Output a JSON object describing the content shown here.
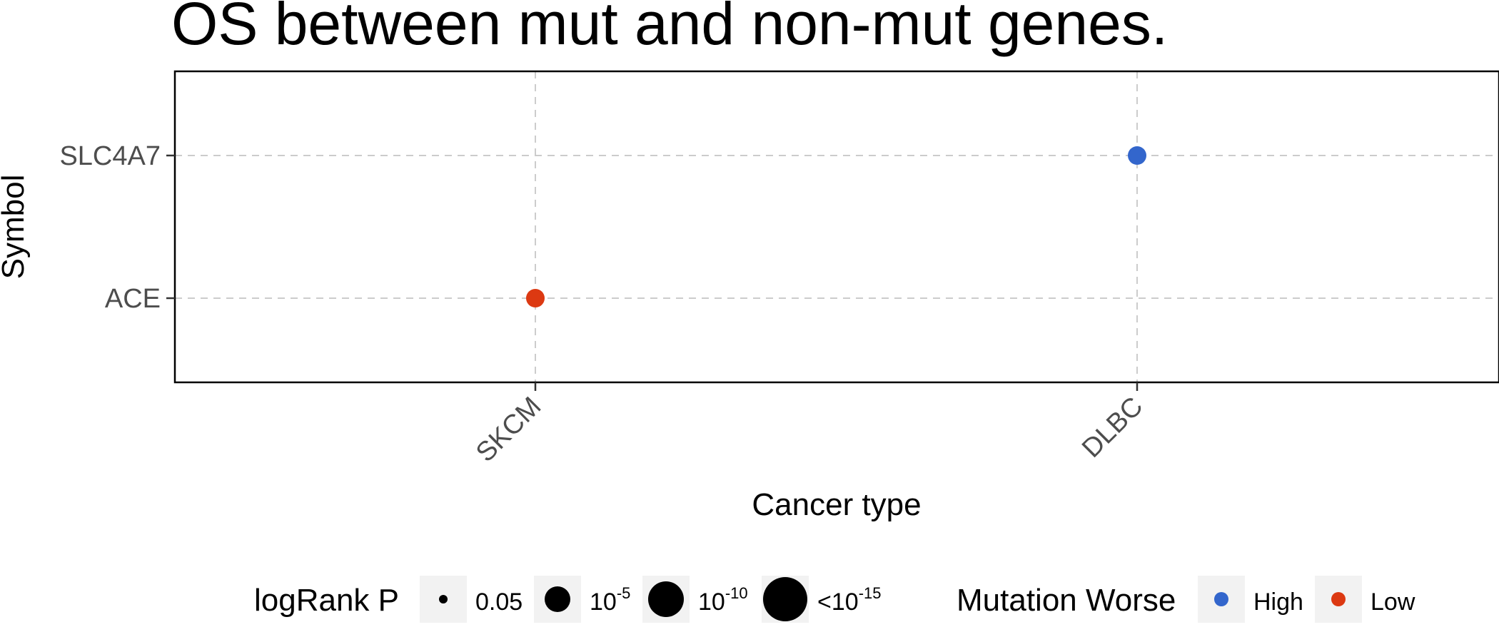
{
  "chart_data": {
    "type": "scatter",
    "title": "OS between mut and non-mut genes.",
    "xlabel": "Cancer type",
    "ylabel": "Symbol",
    "categories_x": [
      "SKCM",
      "DLBC"
    ],
    "categories_y": [
      "ACE",
      "SLC4A7"
    ],
    "grid": true,
    "points": [
      {
        "x": "SKCM",
        "y": "ACE",
        "mutation_worse": "Low",
        "logrank_p_level": "0.05"
      },
      {
        "x": "DLBC",
        "y": "SLC4A7",
        "mutation_worse": "High",
        "logrank_p_level": "0.05"
      }
    ],
    "legend": {
      "placement": "bottom",
      "size": {
        "title": "logRank P",
        "items": [
          {
            "base": "0.05",
            "sup": ""
          },
          {
            "base": "10",
            "sup": "-5"
          },
          {
            "base": "10",
            "sup": "-10"
          },
          {
            "base": "<10",
            "sup": "-15"
          }
        ]
      },
      "color": {
        "title": "Mutation Worse",
        "items": [
          {
            "label": "High",
            "color": "#3366cc"
          },
          {
            "label": "Low",
            "color": "#dc3912"
          }
        ]
      }
    }
  }
}
